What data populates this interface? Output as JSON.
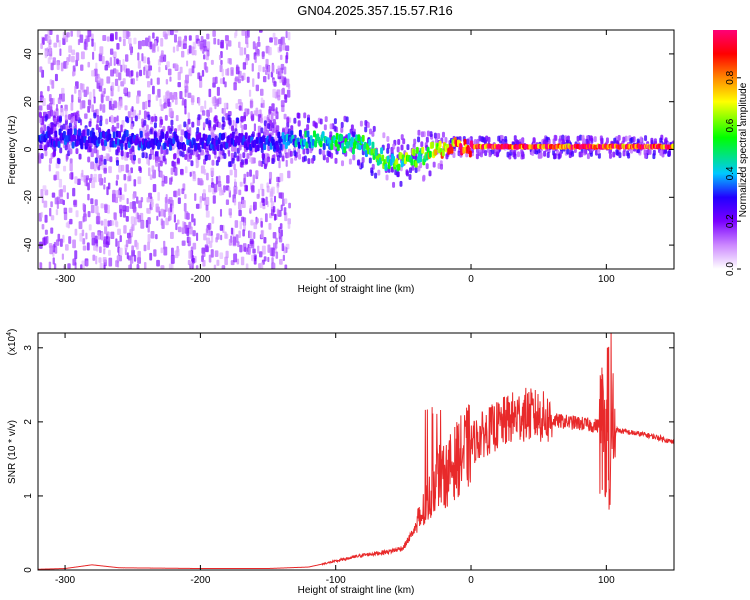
{
  "title": "GN04.2025.357.15.57.R16",
  "chart_data": [
    {
      "type": "heatmap",
      "title": "GN04.2025.357.15.57.R16",
      "xlabel": "Height of straight line (km)",
      "ylabel": "Frequency (Hz)",
      "xlim": [
        -320,
        150
      ],
      "ylim": [
        -50,
        50
      ],
      "xticks": [
        -300,
        -200,
        -100,
        0,
        100
      ],
      "yticks": [
        -40,
        -20,
        0,
        20,
        40
      ],
      "colorbar": {
        "label": "Normalized spectral amplitude",
        "range": [
          0,
          1
        ],
        "ticks": [
          0.0,
          0.2,
          0.4,
          0.6,
          0.8
        ],
        "tick_labels": [
          "0.0",
          "0.2",
          "0.4",
          "0.6",
          "0.8"
        ],
        "colors": [
          "#ffffff",
          "#cc88ff",
          "#7a00ff",
          "#2200ff",
          "#00c8ff",
          "#00ff00",
          "#ffff00",
          "#ff8800",
          "#ff0000",
          "#ff0077"
        ]
      },
      "ridge": {
        "description_points": [
          {
            "x": -320,
            "freq": 5,
            "amp": 0.3
          },
          {
            "x": -150,
            "freq": 3,
            "amp": 0.3
          },
          {
            "x": -120,
            "freq": 5,
            "amp": 0.45
          },
          {
            "x": -80,
            "freq": 2,
            "amp": 0.5
          },
          {
            "x": -60,
            "freq": -6,
            "amp": 0.55
          },
          {
            "x": -40,
            "freq": -3,
            "amp": 0.6
          },
          {
            "x": -20,
            "freq": 1,
            "amp": 0.8
          },
          {
            "x": 0,
            "freq": 1,
            "amp": 0.95
          },
          {
            "x": 150,
            "freq": 1,
            "amp": 0.95
          }
        ]
      }
    },
    {
      "type": "line",
      "xlabel": "Height of straight line (km)",
      "ylabel": "SNR (10 * v/v)",
      "multiplier_label": "(x10",
      "multiplier_exp": "4",
      "multiplier_close": ")",
      "xlim": [
        -320,
        150
      ],
      "ylim": [
        0,
        3.2
      ],
      "xticks": [
        -300,
        -200,
        -100,
        0,
        100
      ],
      "yticks": [
        0,
        1,
        2,
        3
      ],
      "color": "#e8292a",
      "series": [
        {
          "name": "SNR",
          "x": [
            -320,
            -300,
            -280,
            -260,
            -200,
            -150,
            -120,
            -100,
            -80,
            -60,
            -50,
            -40,
            -30,
            -25,
            -20,
            -10,
            0,
            10,
            20,
            30,
            40,
            50,
            60,
            70,
            80,
            90,
            95,
            100,
            102,
            104,
            106,
            110,
            120,
            130,
            140,
            150
          ],
          "y": [
            0.01,
            0.02,
            0.07,
            0.03,
            0.02,
            0.02,
            0.04,
            0.12,
            0.2,
            0.25,
            0.3,
            0.6,
            1.0,
            1.3,
            1.25,
            1.5,
            1.7,
            1.85,
            1.95,
            2.05,
            2.1,
            2.08,
            2.02,
            2.0,
            1.98,
            1.95,
            1.95,
            1.9,
            0.6,
            2.0,
            1.9,
            1.88,
            1.85,
            1.82,
            1.78,
            1.72
          ]
        }
      ]
    }
  ]
}
